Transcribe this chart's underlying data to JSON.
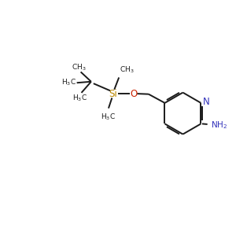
{
  "background_color": "#ffffff",
  "bond_color": "#1a1a1a",
  "N_color": "#3333bb",
  "O_color": "#cc2200",
  "Si_color": "#bb8800",
  "text_color": "#1a1a1a",
  "figsize": [
    3.0,
    3.0
  ],
  "dpi": 100,
  "xlim": [
    0,
    10
  ],
  "ylim": [
    0,
    10
  ]
}
